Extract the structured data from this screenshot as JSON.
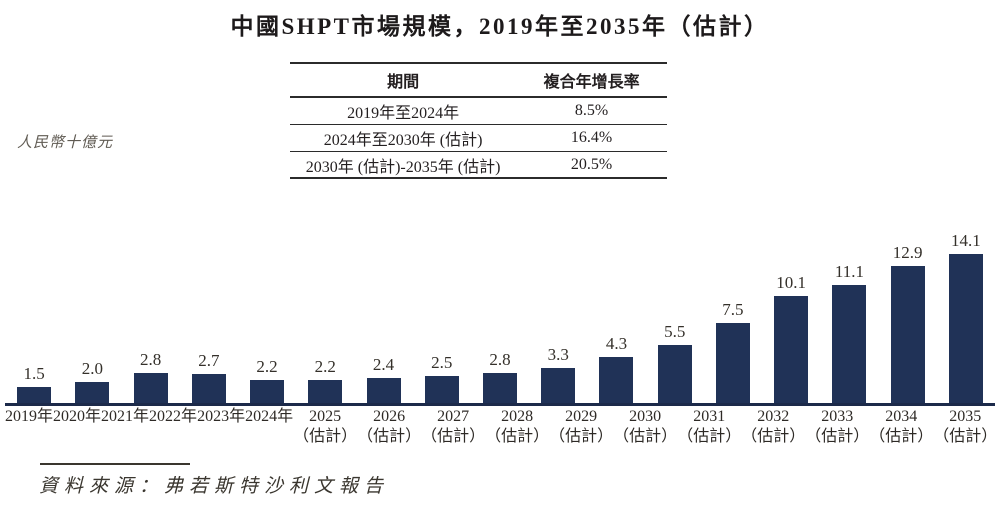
{
  "title": "中國SHPT市場規模，2019年至2035年（估計）",
  "cagr_table": {
    "headers": [
      "期間",
      "複合年增長率"
    ],
    "rows": [
      {
        "period": "2019年至2024年",
        "cagr": "8.5%"
      },
      {
        "period": "2024年至2030年 (估計)",
        "cagr": "16.4%"
      },
      {
        "period": "2030年 (估計)-2035年 (估計)",
        "cagr": "20.5%"
      }
    ]
  },
  "chart_data": {
    "type": "bar",
    "title": "中國SHPT市場規模，2019年至2035年（估計）",
    "unit_label": "人民幣十億元",
    "ylabel": "人民幣十億元",
    "xlabel": "",
    "ylim": [
      0,
      15
    ],
    "grid": false,
    "legend": false,
    "bar_color": "#203257",
    "axis_color": "#1c2a4a",
    "estimate_suffix": "（估計）",
    "points": [
      {
        "category": "2019年",
        "estimate": false,
        "value": 1.5,
        "label": "1.5"
      },
      {
        "category": "2020年",
        "estimate": false,
        "value": 2.0,
        "label": "2.0"
      },
      {
        "category": "2021年",
        "estimate": false,
        "value": 2.8,
        "label": "2.8"
      },
      {
        "category": "2022年",
        "estimate": false,
        "value": 2.7,
        "label": "2.7"
      },
      {
        "category": "2023年",
        "estimate": false,
        "value": 2.2,
        "label": "2.2"
      },
      {
        "category": "2024年",
        "estimate": false,
        "value": 2.2,
        "label": "2.2"
      },
      {
        "category": "2025",
        "estimate": true,
        "value": 2.4,
        "label": "2.4"
      },
      {
        "category": "2026",
        "estimate": true,
        "value": 2.5,
        "label": "2.5"
      },
      {
        "category": "2027",
        "estimate": true,
        "value": 2.8,
        "label": "2.8"
      },
      {
        "category": "2028",
        "estimate": true,
        "value": 3.3,
        "label": "3.3"
      },
      {
        "category": "2029",
        "estimate": true,
        "value": 4.3,
        "label": "4.3"
      },
      {
        "category": "2030",
        "estimate": true,
        "value": 5.5,
        "label": "5.5"
      },
      {
        "category": "2031",
        "estimate": true,
        "value": 7.5,
        "label": "7.5"
      },
      {
        "category": "2032",
        "estimate": true,
        "value": 10.1,
        "label": "10.1"
      },
      {
        "category": "2033",
        "estimate": true,
        "value": 11.1,
        "label": "11.1"
      },
      {
        "category": "2034",
        "estimate": true,
        "value": 12.9,
        "label": "12.9"
      },
      {
        "category": "2035",
        "estimate": true,
        "value": 14.1,
        "label": "14.1"
      }
    ]
  },
  "source": "資料來源：弗若斯特沙利文報告"
}
